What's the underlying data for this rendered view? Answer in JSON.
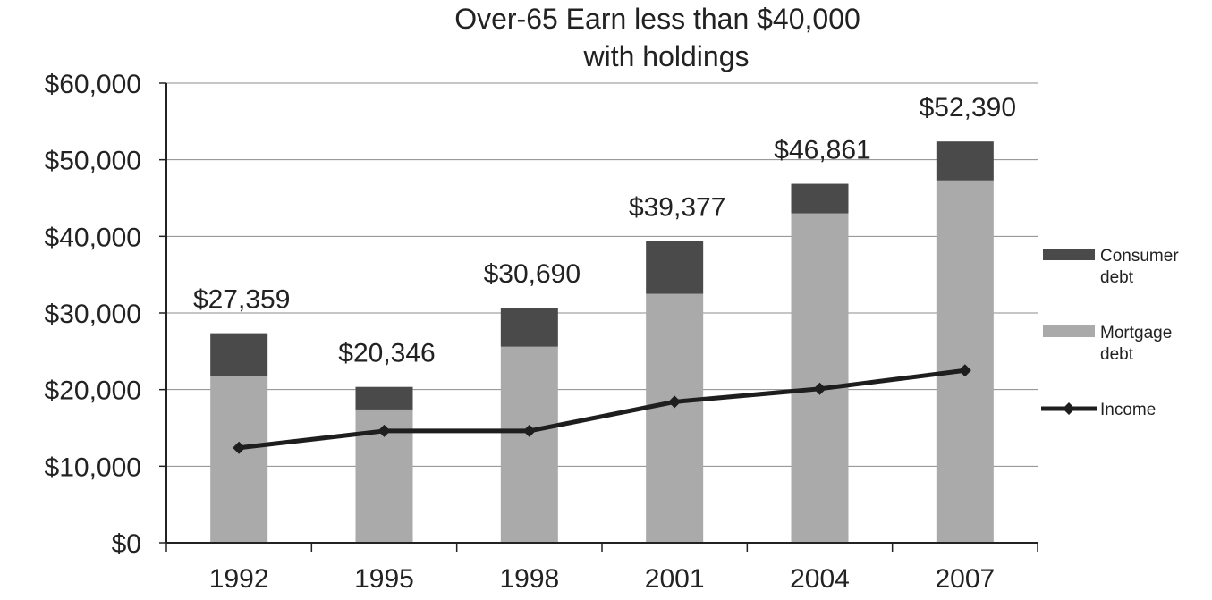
{
  "chart_data": {
    "type": "bar",
    "stacked": true,
    "title_lines": [
      "Over-65 Earn less than $40,000",
      "with holdings"
    ],
    "categories": [
      "1992",
      "1995",
      "1998",
      "2001",
      "2004",
      "2007"
    ],
    "ylim": [
      0,
      60000
    ],
    "y_ticks": [
      0,
      10000,
      20000,
      30000,
      40000,
      50000,
      60000
    ],
    "y_tick_labels": [
      "$0",
      "$10,000",
      "$20,000",
      "$30,000",
      "$40,000",
      "$50,000",
      "$60,000"
    ],
    "grid": true,
    "legend_position": "right",
    "series": [
      {
        "name": "Mortgage debt",
        "type": "bar",
        "color": "#aaaaaa",
        "values": [
          21800,
          17400,
          25600,
          32500,
          43000,
          47300
        ]
      },
      {
        "name": "Consumer debt",
        "type": "bar",
        "color": "#4a4a4a",
        "values": [
          5559,
          2946,
          5090,
          6877,
          3861,
          5090
        ]
      },
      {
        "name": "Income",
        "type": "line",
        "color": "#1e1e1e",
        "values": [
          12400,
          14600,
          14600,
          18400,
          20100,
          22500
        ]
      }
    ],
    "total_labels": [
      "$27,359",
      "$20,346",
      "$30,690",
      "$39,377",
      "$46,861",
      "$52,390"
    ],
    "legend": [
      {
        "lines": [
          "Consumer",
          "debt"
        ]
      },
      {
        "lines": [
          "Mortgage",
          "debt"
        ]
      },
      {
        "lines": [
          "Income"
        ]
      }
    ]
  }
}
